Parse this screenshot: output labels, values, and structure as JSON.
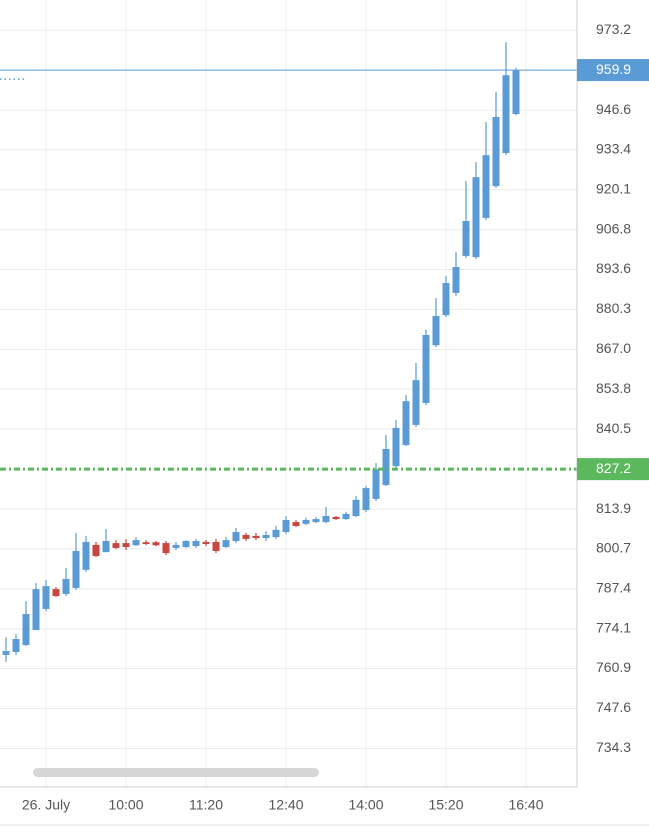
{
  "chart_data": {
    "type": "candlestick",
    "x": [
      480,
      490,
      500,
      510,
      520,
      530,
      540,
      550,
      560,
      570,
      580,
      590,
      600,
      610,
      620,
      630,
      640,
      650,
      660,
      670,
      680,
      690,
      700,
      710,
      720,
      730,
      740,
      750,
      760,
      770,
      780,
      790,
      800,
      810,
      820,
      830,
      840,
      850,
      860,
      870,
      880,
      890,
      900,
      910,
      920,
      930,
      940,
      950,
      960,
      970,
      980,
      990
    ],
    "open": [
      765.4,
      766.4,
      768.7,
      773.7,
      780.7,
      787.3,
      785.7,
      787.7,
      793.7,
      802.0,
      799.6,
      802.6,
      802.6,
      801.9,
      802.9,
      802.9,
      802.6,
      801.0,
      801.3,
      801.6,
      803.0,
      803.0,
      801.3,
      803.3,
      805.3,
      805.0,
      804.3,
      804.6,
      806.3,
      809.6,
      809.0,
      809.6,
      809.6,
      811.3,
      810.6,
      811.6,
      813.6,
      817.3,
      821.9,
      828.2,
      835.2,
      841.9,
      849.2,
      868.4,
      878.4,
      885.8,
      898.1,
      897.7,
      910.7,
      921.3,
      932.3,
      945.3
    ],
    "high": [
      771.3,
      772.3,
      783.3,
      789.3,
      790.3,
      788.0,
      794.3,
      806.0,
      805.0,
      803.0,
      807.3,
      803.6,
      803.9,
      804.6,
      803.6,
      803.3,
      803.3,
      803.0,
      803.6,
      804.0,
      803.6,
      804.0,
      804.6,
      807.6,
      806.0,
      806.0,
      806.6,
      808.3,
      811.6,
      810.3,
      811.0,
      811.3,
      814.6,
      811.6,
      813.0,
      818.3,
      821.6,
      829.2,
      838.5,
      843.5,
      851.8,
      862.5,
      873.5,
      884.1,
      891.4,
      899.4,
      923.0,
      929.3,
      942.6,
      952.6,
      969.2,
      960.6
    ],
    "low": [
      763.1,
      765.4,
      768.4,
      773.7,
      780.0,
      784.7,
      785.0,
      787.0,
      793.0,
      798.0,
      799.6,
      800.6,
      800.3,
      801.6,
      801.9,
      801.6,
      798.6,
      800.3,
      801.0,
      801.0,
      801.6,
      799.3,
      801.0,
      802.6,
      803.3,
      803.6,
      803.3,
      804.0,
      805.6,
      808.0,
      808.6,
      809.3,
      809.3,
      810.3,
      810.3,
      811.3,
      812.9,
      816.6,
      821.6,
      827.6,
      834.9,
      841.2,
      848.5,
      867.8,
      877.8,
      884.8,
      897.4,
      897.1,
      910.0,
      920.7,
      931.6,
      944.9
    ],
    "close": [
      766.7,
      770.7,
      779.0,
      787.3,
      788.3,
      785.0,
      790.7,
      800.0,
      803.0,
      798.3,
      803.3,
      801.0,
      801.3,
      803.6,
      802.3,
      801.9,
      799.3,
      802.0,
      803.3,
      803.3,
      802.3,
      800.0,
      803.6,
      806.3,
      804.0,
      804.3,
      805.3,
      807.0,
      810.3,
      808.3,
      810.3,
      810.6,
      811.6,
      810.6,
      812.3,
      817.0,
      820.9,
      827.2,
      833.9,
      840.9,
      849.8,
      856.8,
      871.8,
      878.1,
      889.1,
      894.4,
      909.7,
      924.3,
      931.6,
      944.3,
      958.2,
      959.9
    ],
    "up_color": "#5b9bd5",
    "down_color": "#c8463f",
    "xlim": [
      474,
      1051
    ],
    "xticks": [
      {
        "value": 520,
        "label": "26. July"
      },
      {
        "value": 600,
        "label": "10:00"
      },
      {
        "value": 680,
        "label": "11:20"
      },
      {
        "value": 760,
        "label": "12:40"
      },
      {
        "value": 840,
        "label": "14:00"
      },
      {
        "value": 920,
        "label": "15:20"
      },
      {
        "value": 1000,
        "label": "16:40"
      }
    ],
    "ylim": [
      721.5,
      983.2
    ],
    "yticks": [
      973.2,
      946.6,
      933.4,
      920.1,
      906.8,
      893.6,
      880.3,
      {
        "value": 867,
        "label": "867.0"
      },
      853.8,
      840.5,
      813.9,
      800.7,
      787.4,
      774.1,
      760.9,
      747.6,
      734.3
    ],
    "grid": true,
    "price_lines": [
      {
        "value": 959.9,
        "color": "#5b9bd5",
        "style": "solid"
      },
      {
        "value": 827.2,
        "color": "#5cb85c",
        "style": "dashdot"
      }
    ],
    "dotted_line": {
      "value": 956.9,
      "color": "#5b9bd5"
    }
  }
}
